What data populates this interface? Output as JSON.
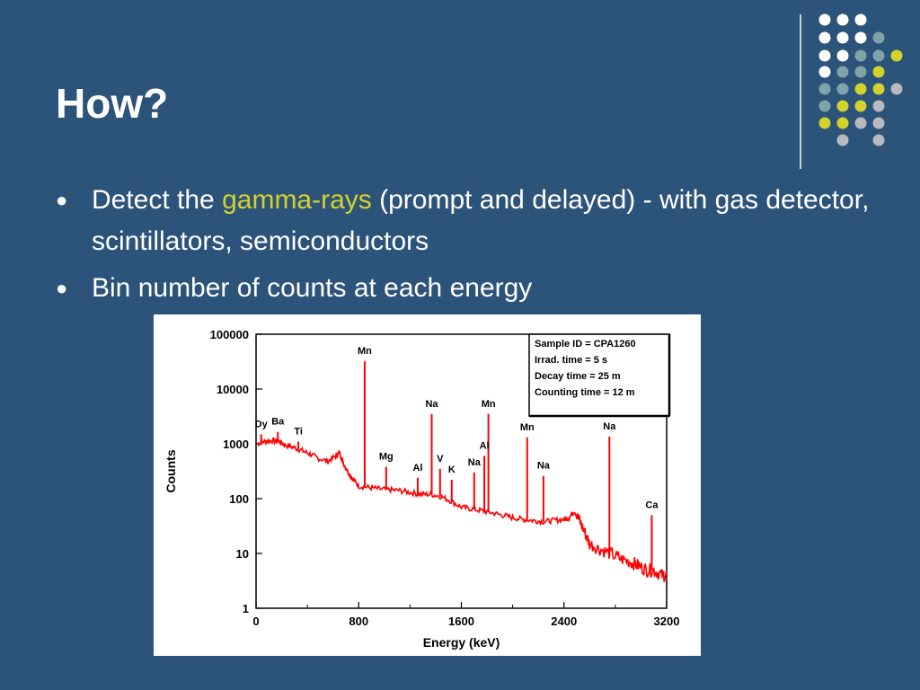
{
  "slide": {
    "title": "How?",
    "bullets": [
      {
        "text_before": "Detect the ",
        "highlight": "gamma-rays",
        "text_after": " (prompt and delayed)  - with gas detector, scintillators, semiconductors"
      },
      {
        "text": "Bin number of counts at each energy"
      }
    ]
  },
  "colors": {
    "background": "#2c5379",
    "accent": "#d3d22c",
    "text": "#ffffff",
    "spectrum": "#ff0000"
  },
  "chart_data": {
    "type": "line",
    "xlabel": "Energy (keV)",
    "ylabel": "Counts",
    "xlim": [
      0,
      3200
    ],
    "ylim": [
      1,
      100000
    ],
    "yscale": "log",
    "x_ticks": [
      "0",
      "800",
      "1600",
      "2400",
      "3200"
    ],
    "y_ticks": [
      "1",
      "10",
      "100",
      "1000",
      "10000",
      "100000"
    ],
    "info_box": [
      "Sample ID = CPA1260",
      "Irrad. time      =   5 s",
      "Decay time     = 25 m",
      "Counting time = 12 m"
    ],
    "spectrum": {
      "name": "spectrum",
      "x": [
        10,
        60,
        120,
        180,
        230,
        300,
        360,
        420,
        480,
        560,
        620,
        650,
        680,
        720,
        760,
        800,
        880,
        960,
        1040,
        1120,
        1200,
        1280,
        1360,
        1440,
        1520,
        1600,
        1680,
        1760,
        1840,
        1920,
        2000,
        2080,
        2160,
        2240,
        2320,
        2400,
        2440,
        2480,
        2520,
        2560,
        2600,
        2680,
        2760,
        2840,
        2920,
        2980,
        3040,
        3100,
        3160,
        3200
      ],
      "y": [
        1000,
        1100,
        1150,
        1100,
        950,
        850,
        750,
        650,
        550,
        480,
        600,
        700,
        450,
        300,
        220,
        170,
        160,
        150,
        145,
        140,
        130,
        120,
        120,
        110,
        90,
        70,
        65,
        60,
        55,
        50,
        45,
        42,
        40,
        38,
        40,
        42,
        45,
        60,
        40,
        25,
        15,
        12,
        10,
        8,
        7,
        6,
        5,
        5,
        4,
        4
      ]
    },
    "peaks": [
      {
        "label": "Dy",
        "x": 40,
        "y": 1500
      },
      {
        "label": "Ba",
        "x": 170,
        "y": 1650
      },
      {
        "label": "Ti",
        "x": 330,
        "y": 1100
      },
      {
        "label": "Mn",
        "x": 847,
        "y": 32000
      },
      {
        "label": "Mg",
        "x": 1014,
        "y": 380
      },
      {
        "label": "Al",
        "x": 1260,
        "y": 240
      },
      {
        "label": "Na",
        "x": 1369,
        "y": 3500
      },
      {
        "label": "V",
        "x": 1434,
        "y": 350
      },
      {
        "label": "K",
        "x": 1525,
        "y": 220
      },
      {
        "label": "Na",
        "x": 1700,
        "y": 300
      },
      {
        "label": "Al",
        "x": 1779,
        "y": 600
      },
      {
        "label": "Mn",
        "x": 1811,
        "y": 3500
      },
      {
        "label": "Mn",
        "x": 2113,
        "y": 1300
      },
      {
        "label": "Na",
        "x": 2240,
        "y": 260
      },
      {
        "label": "Na",
        "x": 2754,
        "y": 1350
      },
      {
        "label": "Ca",
        "x": 3084,
        "y": 50
      }
    ]
  }
}
